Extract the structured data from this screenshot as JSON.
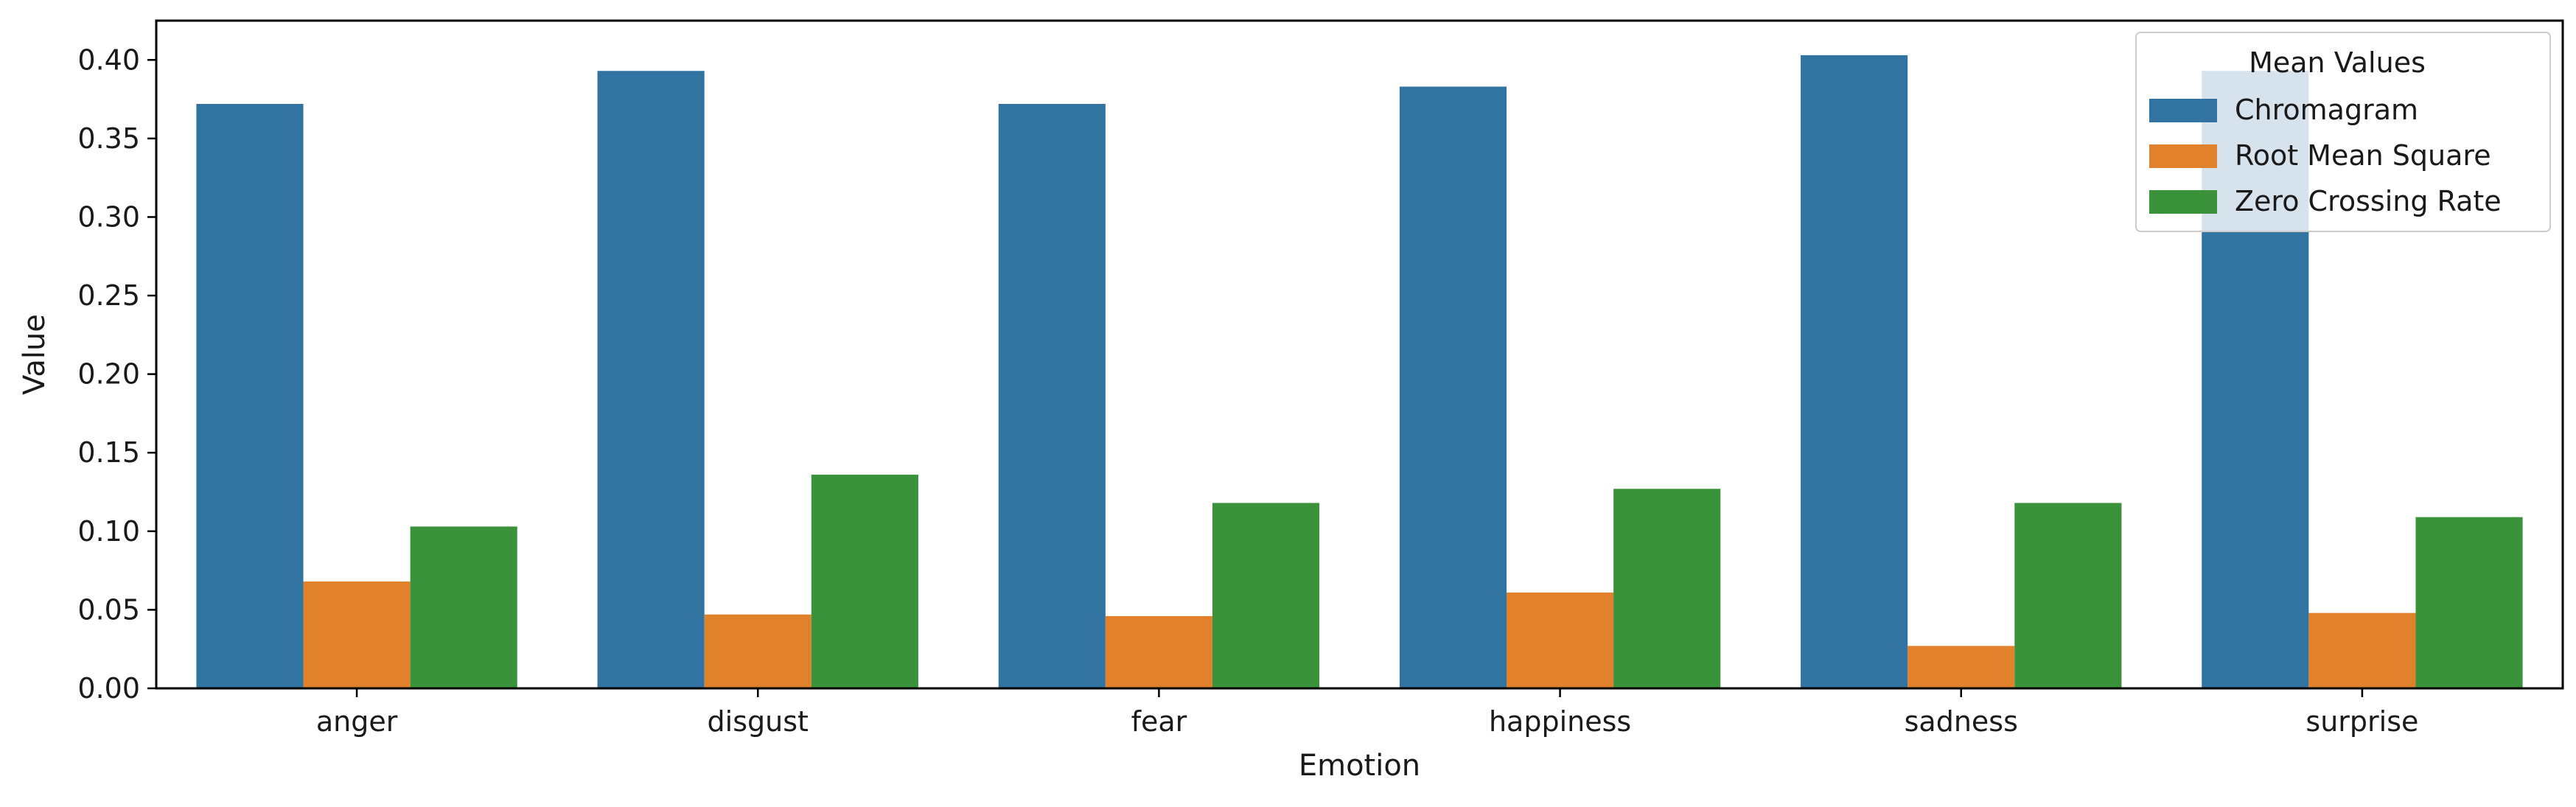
{
  "chart_data": {
    "type": "bar",
    "title": "",
    "xlabel": "Emotion",
    "ylabel": "Value",
    "ylim": [
      0,
      0.425
    ],
    "yticks": [
      "0.00",
      "0.05",
      "0.10",
      "0.15",
      "0.20",
      "0.25",
      "0.30",
      "0.35",
      "0.40"
    ],
    "categories": [
      "anger",
      "disgust",
      "fear",
      "happiness",
      "sadness",
      "surprise"
    ],
    "series": [
      {
        "name": "Chromagram",
        "color": "#3274a1",
        "values": [
          0.372,
          0.393,
          0.372,
          0.383,
          0.403,
          0.393
        ]
      },
      {
        "name": "Root Mean Square",
        "color": "#e1812c",
        "values": [
          0.068,
          0.047,
          0.046,
          0.061,
          0.027,
          0.048
        ]
      },
      {
        "name": "Zero Crossing Rate",
        "color": "#3a923a",
        "values": [
          0.103,
          0.136,
          0.118,
          0.127,
          0.118,
          0.109
        ]
      }
    ],
    "legend": {
      "title": "Mean Values",
      "placement": "top-right"
    },
    "grid": false
  }
}
